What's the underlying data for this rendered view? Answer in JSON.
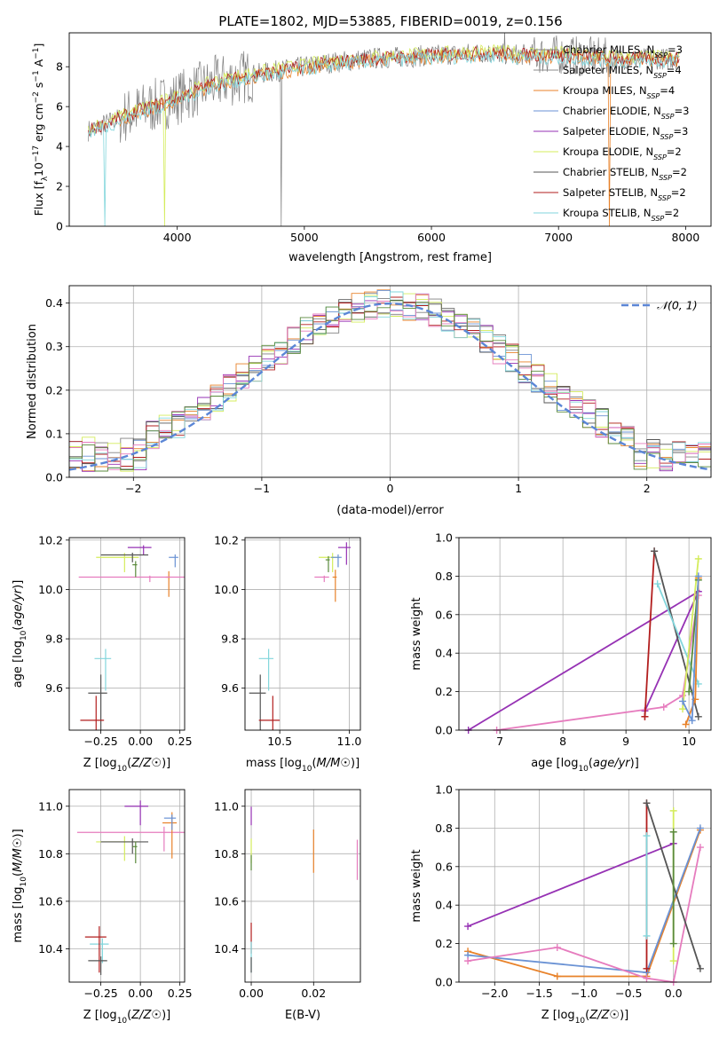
{
  "figure_title": "PLATE=1802, MJD=53885, FIBERID=0019, z=0.156",
  "colors": {
    "Chabrier MILES": "#808080",
    "Salpeter MILES": "#8b8b8b",
    "Kroupa MILES": "#e8822a",
    "Chabrier ELODIE": "#6a92d4",
    "Salpeter ELODIE": "#9632b4",
    "Kroupa ELODIE": "#d4ec5c",
    "Chabrier STELIB": "#555555",
    "Salpeter STELIB": "#b21e1e",
    "Kroupa STELIB": "#82d6dc",
    "extra_pink": "#e67cbe",
    "extra_green": "#5a8a3c"
  },
  "chart_data": [
    {
      "id": "spectrum",
      "type": "line",
      "title": "PLATE=1802, MJD=53885, FIBERID=0019, z=0.156",
      "xlabel": "wavelength [Angstrom, rest frame]",
      "ylabel": "Flux [f_λ 10^-17 erg cm^-2 s^-1 A^-1]",
      "xlim": [
        3150,
        8200
      ],
      "ylim": [
        0,
        9.7
      ],
      "xticks": [
        "4000",
        "5000",
        "6000",
        "7000",
        "8000"
      ],
      "yticks": [
        "0",
        "2",
        "4",
        "6",
        "8"
      ],
      "legend_position": "right",
      "legend": [
        "Chabrier MILES, N_SSP=3",
        "Salpeter MILES, N_SSP=4",
        "Kroupa MILES, N_SSP=4",
        "Chabrier ELODIE, N_SSP=3",
        "Salpeter ELODIE, N_SSP=3",
        "Kroupa ELODIE, N_SSP=2",
        "Chabrier STELIB, N_SSP=2",
        "Salpeter STELIB, N_SSP=2",
        "Kroupa STELIB, N_SSP=2"
      ],
      "continuum_x": [
        3300,
        3500,
        3700,
        3900,
        4100,
        4300,
        4600,
        4900,
        5200,
        5500,
        5800,
        6100,
        6400,
        6700,
        7000,
        7300,
        7500
      ],
      "continuum_y": [
        4.8,
        5.3,
        5.8,
        6.2,
        6.7,
        7.2,
        7.6,
        7.9,
        8.2,
        8.4,
        8.5,
        8.6,
        8.7,
        8.6,
        8.6,
        8.5,
        8.4
      ]
    },
    {
      "id": "residuals",
      "type": "histogram",
      "xlabel": "(data-model)/error",
      "ylabel": "Normed distribution",
      "xlim": [
        -2.5,
        2.5
      ],
      "ylim": [
        0,
        0.44
      ],
      "xticks": [
        "−2",
        "−1",
        "0",
        "1",
        "2"
      ],
      "yticks": [
        "0.0",
        "0.1",
        "0.2",
        "0.3",
        "0.4"
      ],
      "bin_width": 0.1,
      "bin_start": -2.5,
      "legend": [
        "𝒩(0, 1)"
      ],
      "legend_position": "top-right"
    },
    {
      "id": "age-Z",
      "type": "scatter",
      "xlabel": "Z [log10(Z/Z☉)]",
      "ylabel": "age  [log10(age/yr)]",
      "xlim": [
        -0.45,
        0.28
      ],
      "ylim": [
        9.43,
        10.21
      ],
      "xticks": [
        "−0.25",
        "0.00",
        "0.25"
      ],
      "yticks": [
        "9.6",
        "9.8",
        "10.0",
        "10.2"
      ],
      "points": [
        {
          "x": -0.1,
          "y": 10.13,
          "xerr": 0.18,
          "yerr": 0.06,
          "c": "Kroupa ELODIE"
        },
        {
          "x": 0.02,
          "y": 10.17,
          "xerr": 0.1,
          "yerr": 0.03,
          "c": "Salpeter ELODIE"
        },
        {
          "x": -0.05,
          "y": 10.14,
          "xerr": 0.2,
          "yerr": 0.03,
          "c": "Chabrier STELIB"
        },
        {
          "x": 0.18,
          "y": 10.05,
          "xerr": 0.02,
          "yerr": 0.08,
          "c": "Kroupa MILES"
        },
        {
          "x": 0.06,
          "y": 10.05,
          "xerr": 0.45,
          "yerr": 0.02,
          "c": "extra_pink"
        },
        {
          "x": 0.22,
          "y": 10.13,
          "xerr": 0.04,
          "yerr": 0.04,
          "c": "Chabrier ELODIE"
        },
        {
          "x": -0.03,
          "y": 10.1,
          "xerr": 0.02,
          "yerr": 0.05,
          "c": "extra_green"
        },
        {
          "x": -0.22,
          "y": 9.72,
          "xerr": 0.07,
          "yerr": 0.13,
          "c": "Kroupa STELIB"
        },
        {
          "x": -0.25,
          "y": 9.58,
          "xerr": 0.08,
          "yerr": 0.25,
          "c": "Chabrier STELIB"
        },
        {
          "x": -0.28,
          "y": 9.47,
          "xerr": 0.1,
          "yerr": 0.33,
          "c": "Salpeter STELIB"
        }
      ]
    },
    {
      "id": "age-mass",
      "type": "scatter",
      "xlabel": "mass [log10(M/M☉)]",
      "ylabel": "",
      "xlim": [
        10.25,
        11.08
      ],
      "ylim": [
        9.43,
        10.21
      ],
      "xticks": [
        "10.5",
        "11.0"
      ],
      "yticks": [
        "9.6",
        "9.8",
        "10.0",
        "10.2"
      ],
      "points": [
        {
          "x": 10.88,
          "y": 10.13,
          "xerr": 0.1,
          "yerr": 0.06,
          "c": "Kroupa ELODIE"
        },
        {
          "x": 10.98,
          "y": 10.17,
          "xerr": 0.06,
          "yerr": 0.07,
          "c": "Salpeter ELODIE"
        },
        {
          "x": 10.92,
          "y": 10.13,
          "xerr": 0.05,
          "yerr": 0.04,
          "c": "Chabrier ELODIE"
        },
        {
          "x": 10.9,
          "y": 10.05,
          "xerr": 0.02,
          "yerr": 0.1,
          "c": "Kroupa MILES"
        },
        {
          "x": 10.82,
          "y": 10.05,
          "xerr": 0.07,
          "yerr": 0.02,
          "c": "extra_pink"
        },
        {
          "x": 10.85,
          "y": 10.12,
          "xerr": 0.02,
          "yerr": 0.05,
          "c": "extra_green"
        },
        {
          "x": 10.42,
          "y": 9.72,
          "xerr": 0.07,
          "yerr": 0.13,
          "c": "Kroupa STELIB"
        },
        {
          "x": 10.36,
          "y": 9.58,
          "xerr": 0.08,
          "yerr": 0.25,
          "c": "Chabrier STELIB"
        },
        {
          "x": 10.45,
          "y": 9.47,
          "xerr": 0.1,
          "yerr": 0.33,
          "c": "Salpeter STELIB"
        }
      ]
    },
    {
      "id": "weight-age",
      "type": "line",
      "xlabel": "age  [log10(age/yr)]",
      "ylabel": "mass weight",
      "xlim": [
        6.35,
        10.35
      ],
      "ylim": [
        0,
        1
      ],
      "xticks": [
        "7",
        "8",
        "9",
        "10"
      ],
      "yticks": [
        "0.0",
        "0.2",
        "0.4",
        "0.6",
        "0.8",
        "1.0"
      ],
      "series": [
        {
          "c": "Salpeter ELODIE",
          "x": [
            6.5,
            10.15,
            9.3
          ],
          "y": [
            0.0,
            0.72,
            0.1
          ]
        },
        {
          "c": "extra_pink",
          "x": [
            6.95,
            9.6,
            9.9,
            10.15
          ],
          "y": [
            0.0,
            0.12,
            0.18,
            0.7
          ]
        },
        {
          "c": "Salpeter STELIB",
          "x": [
            9.3,
            9.45,
            9.3
          ],
          "y": [
            0.07,
            0.93,
            0.07
          ]
        },
        {
          "c": "Chabrier STELIB",
          "x": [
            9.45,
            10.15
          ],
          "y": [
            0.93,
            0.07
          ]
        },
        {
          "c": "Kroupa STELIB",
          "x": [
            9.5,
            10.15
          ],
          "y": [
            0.76,
            0.24
          ]
        },
        {
          "c": "Kroupa ELODIE",
          "x": [
            9.9,
            10.15
          ],
          "y": [
            0.11,
            0.89
          ]
        },
        {
          "c": "extra_green",
          "x": [
            10.0,
            10.15
          ],
          "y": [
            0.2,
            0.78
          ]
        },
        {
          "c": "Kroupa MILES",
          "x": [
            9.95,
            10.1,
            10.15
          ],
          "y": [
            0.03,
            0.16,
            0.79
          ]
        },
        {
          "c": "Chabrier ELODIE",
          "x": [
            9.9,
            10.05,
            10.15
          ],
          "y": [
            0.15,
            0.05,
            0.8
          ]
        }
      ]
    },
    {
      "id": "mass-Z",
      "type": "scatter",
      "xlabel": "Z [log10(Z/Z☉)]",
      "ylabel": "mass [log10(M/M☉)]",
      "xlim": [
        -0.45,
        0.28
      ],
      "ylim": [
        10.26,
        11.07
      ],
      "xticks": [
        "−0.25",
        "0.00",
        "0.25"
      ],
      "yticks": [
        "10.4",
        "10.6",
        "10.8",
        "11.0"
      ],
      "points": [
        {
          "x": 0.0,
          "y": 11.0,
          "xerr": 0.1,
          "yerr": 0.08,
          "c": "Salpeter ELODIE"
        },
        {
          "x": -0.1,
          "y": 10.85,
          "xerr": 0.18,
          "yerr": 0.08,
          "c": "Kroupa ELODIE"
        },
        {
          "x": -0.05,
          "y": 10.85,
          "xerr": 0.2,
          "yerr": 0.05,
          "c": "Chabrier STELIB"
        },
        {
          "x": -0.03,
          "y": 10.83,
          "xerr": 0.02,
          "yerr": 0.07,
          "c": "extra_green"
        },
        {
          "x": 0.15,
          "y": 10.89,
          "xerr": 0.55,
          "yerr": 0.08,
          "c": "extra_pink"
        },
        {
          "x": 0.2,
          "y": 10.93,
          "xerr": 0.06,
          "yerr": 0.15,
          "c": "Kroupa MILES"
        },
        {
          "x": 0.2,
          "y": 10.95,
          "xerr": 0.05,
          "yerr": 0.05,
          "c": "Chabrier ELODIE"
        },
        {
          "x": -0.24,
          "y": 10.42,
          "xerr": 0.08,
          "yerr": 0.08,
          "c": "Kroupa STELIB"
        },
        {
          "x": -0.26,
          "y": 10.45,
          "xerr": 0.09,
          "yerr": 0.15,
          "c": "Salpeter STELIB"
        },
        {
          "x": -0.25,
          "y": 10.35,
          "xerr": 0.08,
          "yerr": 0.06,
          "c": "Chabrier STELIB"
        }
      ]
    },
    {
      "id": "mass-ebv",
      "type": "scatter",
      "xlabel": "E(B-V)",
      "ylabel": "",
      "xlim": [
        -0.002,
        0.035
      ],
      "ylim": [
        10.26,
        11.07
      ],
      "xticks": [
        "0.00",
        "0.02"
      ],
      "yticks": [
        "10.4",
        "10.6",
        "10.8",
        "11.0"
      ],
      "points": [
        {
          "x": 0.0,
          "y": 10.98,
          "xerr": 0,
          "yerr": 0.06,
          "c": "Salpeter ELODIE"
        },
        {
          "x": 0.0,
          "y": 10.84,
          "xerr": 0,
          "yerr": 0.08,
          "c": "Kroupa ELODIE"
        },
        {
          "x": 0.0,
          "y": 10.78,
          "xerr": 0,
          "yerr": 0.05,
          "c": "extra_green"
        },
        {
          "x": 0.02,
          "y": 10.86,
          "xerr": 0,
          "yerr": 0.14,
          "c": "Kroupa MILES"
        },
        {
          "x": 0.034,
          "y": 10.82,
          "xerr": 0,
          "yerr": 0.13,
          "c": "extra_pink"
        },
        {
          "x": 0.0,
          "y": 10.48,
          "xerr": 0,
          "yerr": 0.1,
          "c": "Salpeter STELIB"
        },
        {
          "x": 0.0,
          "y": 10.4,
          "xerr": 0,
          "yerr": 0.1,
          "c": "Kroupa STELIB"
        },
        {
          "x": 0.0,
          "y": 10.35,
          "xerr": 0,
          "yerr": 0.05,
          "c": "Chabrier STELIB"
        }
      ]
    },
    {
      "id": "weight-Z",
      "type": "line",
      "xlabel": "Z [log10(Z/Z☉)]",
      "ylabel": "mass weight",
      "xlim": [
        -2.4,
        0.42
      ],
      "ylim": [
        0,
        1
      ],
      "xticks": [
        "−2.0",
        "−1.5",
        "−1.0",
        "−0.5",
        "0.0"
      ],
      "yticks": [
        "0.0",
        "0.2",
        "0.4",
        "0.6",
        "0.8",
        "1.0"
      ],
      "series": [
        {
          "c": "Salpeter ELODIE",
          "x": [
            -2.3,
            0.0
          ],
          "y": [
            0.29,
            0.72
          ]
        },
        {
          "c": "Kroupa MILES",
          "x": [
            -2.3,
            -1.3,
            -0.3,
            0.3
          ],
          "y": [
            0.16,
            0.03,
            0.03,
            0.79
          ]
        },
        {
          "c": "Chabrier ELODIE",
          "x": [
            -2.3,
            -0.3,
            0.3
          ],
          "y": [
            0.14,
            0.05,
            0.8
          ]
        },
        {
          "c": "extra_pink",
          "x": [
            -2.3,
            -1.3,
            -0.3,
            0.0,
            0.3
          ],
          "y": [
            0.11,
            0.18,
            0.02,
            0.0,
            0.7
          ]
        },
        {
          "c": "Salpeter STELIB",
          "x": [
            -0.3,
            -0.3
          ],
          "y": [
            0.07,
            0.93
          ]
        },
        {
          "c": "Chabrier STELIB",
          "x": [
            -0.3,
            0.3
          ],
          "y": [
            0.93,
            0.07
          ]
        },
        {
          "c": "Kroupa STELIB",
          "x": [
            -0.3,
            -0.3
          ],
          "y": [
            0.24,
            0.76
          ]
        },
        {
          "c": "Kroupa ELODIE",
          "x": [
            0.0,
            0.0
          ],
          "y": [
            0.11,
            0.89
          ]
        },
        {
          "c": "extra_green",
          "x": [
            0.0,
            0.0
          ],
          "y": [
            0.2,
            0.78
          ]
        }
      ]
    }
  ]
}
